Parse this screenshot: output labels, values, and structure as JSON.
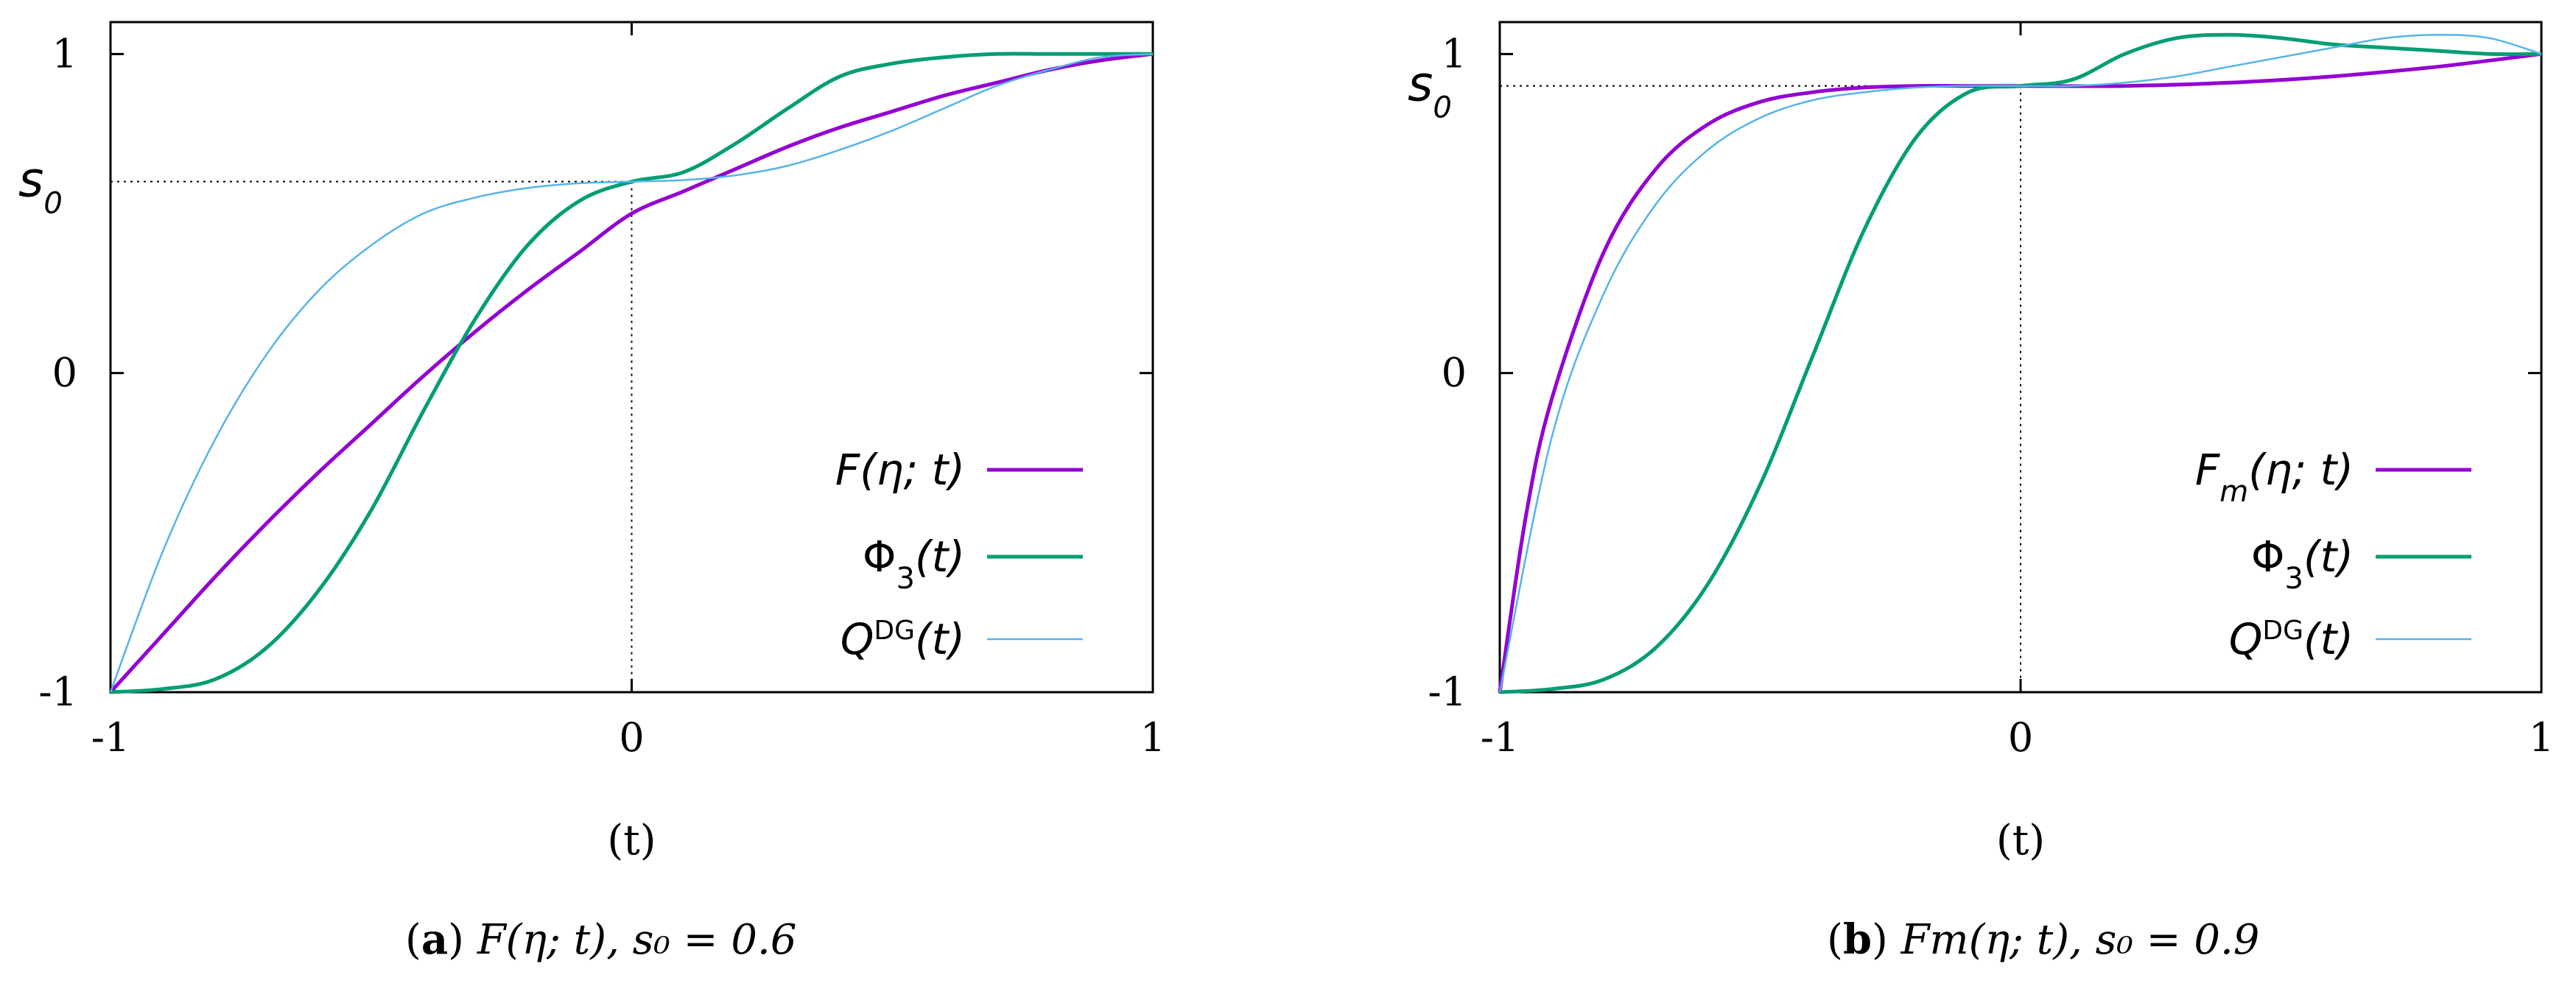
{
  "chart_data": [
    {
      "type": "line",
      "panel_tag": "a",
      "caption_expr": "F(η; t), s₀ = 0.6",
      "xlabel": "(t)",
      "xlim": [
        -1,
        1
      ],
      "ylim": [
        -1,
        1.1
      ],
      "x_ticks": [
        "-1",
        "0",
        "1"
      ],
      "y_ticks": [
        "-1",
        "0",
        "1"
      ],
      "s0": 0.6,
      "s0_label": "s0",
      "grid": false,
      "legend_position": "bottom-right",
      "colors": {
        "F": "#9400d3",
        "Phi3": "#009e73",
        "QDG": "#56b4e9"
      },
      "series": [
        {
          "key": "F",
          "name": "F(η; t)",
          "x": [
            -1,
            -0.9,
            -0.8,
            -0.7,
            -0.6,
            -0.5,
            -0.4,
            -0.3,
            -0.2,
            -0.1,
            0,
            0.1,
            0.2,
            0.3,
            0.4,
            0.5,
            0.6,
            0.7,
            0.8,
            0.9,
            1
          ],
          "y": [
            -1,
            -0.82,
            -0.64,
            -0.47,
            -0.31,
            -0.16,
            -0.01,
            0.13,
            0.26,
            0.38,
            0.5,
            0.57,
            0.64,
            0.71,
            0.77,
            0.82,
            0.87,
            0.91,
            0.95,
            0.98,
            1.0
          ]
        },
        {
          "key": "Phi3",
          "name": "Φ3(t)",
          "x": [
            -1,
            -0.9,
            -0.8,
            -0.7,
            -0.6,
            -0.5,
            -0.4,
            -0.3,
            -0.2,
            -0.1,
            0,
            0.1,
            0.2,
            0.3,
            0.4,
            0.5,
            0.6,
            0.7,
            0.8,
            0.9,
            1
          ],
          "y": [
            -1,
            -0.99,
            -0.96,
            -0.86,
            -0.68,
            -0.43,
            -0.12,
            0.17,
            0.4,
            0.54,
            0.6,
            0.63,
            0.72,
            0.83,
            0.93,
            0.97,
            0.99,
            1.0,
            1.0,
            1.0,
            1.0
          ]
        },
        {
          "key": "QDG",
          "name": "QDG(t)",
          "x": [
            -1,
            -0.9,
            -0.8,
            -0.7,
            -0.6,
            -0.5,
            -0.4,
            -0.3,
            -0.2,
            -0.1,
            0,
            0.1,
            0.2,
            0.3,
            0.4,
            0.5,
            0.6,
            0.7,
            0.8,
            0.9,
            1
          ],
          "y": [
            -1,
            -0.56,
            -0.21,
            0.06,
            0.26,
            0.4,
            0.5,
            0.55,
            0.58,
            0.595,
            0.6,
            0.605,
            0.62,
            0.65,
            0.7,
            0.76,
            0.83,
            0.9,
            0.95,
            0.99,
            1.0
          ]
        }
      ]
    },
    {
      "type": "line",
      "panel_tag": "b",
      "caption_expr": "Fm(η; t), s₀ = 0.9",
      "xlabel": "(t)",
      "xlim": [
        -1,
        1
      ],
      "ylim": [
        -1,
        1.1
      ],
      "x_ticks": [
        "-1",
        "0",
        "1"
      ],
      "y_ticks": [
        "-1",
        "0",
        "1"
      ],
      "s0": 0.9,
      "s0_label": "s0",
      "grid": false,
      "legend_position": "bottom-right",
      "colors": {
        "F": "#9400d3",
        "Phi3": "#009e73",
        "QDG": "#56b4e9"
      },
      "series": [
        {
          "key": "F",
          "name": "Fm(η; t)",
          "x": [
            -1,
            -0.95,
            -0.9,
            -0.8,
            -0.7,
            -0.6,
            -0.5,
            -0.4,
            -0.3,
            -0.2,
            -0.1,
            0,
            0.2,
            0.4,
            0.6,
            0.8,
            1
          ],
          "y": [
            -1,
            -0.45,
            -0.08,
            0.38,
            0.64,
            0.78,
            0.85,
            0.88,
            0.895,
            0.9,
            0.9,
            0.9,
            0.9,
            0.91,
            0.93,
            0.96,
            1.0
          ]
        },
        {
          "key": "Phi3",
          "name": "Φ3(t)",
          "x": [
            -1,
            -0.9,
            -0.8,
            -0.7,
            -0.6,
            -0.5,
            -0.4,
            -0.3,
            -0.2,
            -0.1,
            0,
            0.1,
            0.2,
            0.3,
            0.4,
            0.5,
            0.6,
            0.7,
            0.8,
            0.9,
            1
          ],
          "y": [
            -1,
            -0.99,
            -0.96,
            -0.86,
            -0.66,
            -0.35,
            0.05,
            0.45,
            0.74,
            0.88,
            0.9,
            0.92,
            1.0,
            1.05,
            1.06,
            1.05,
            1.03,
            1.02,
            1.01,
            1.0,
            1.0
          ]
        },
        {
          "key": "QDG",
          "name": "QDG(t)",
          "x": [
            -1,
            -0.9,
            -0.8,
            -0.7,
            -0.6,
            -0.5,
            -0.4,
            -0.3,
            -0.2,
            -0.1,
            0,
            0.1,
            0.2,
            0.3,
            0.4,
            0.5,
            0.6,
            0.7,
            0.8,
            0.9,
            1
          ],
          "y": [
            -1,
            -0.2,
            0.25,
            0.53,
            0.7,
            0.8,
            0.855,
            0.88,
            0.895,
            0.9,
            0.9,
            0.9,
            0.91,
            0.93,
            0.96,
            0.99,
            1.02,
            1.05,
            1.06,
            1.05,
            1.0
          ]
        }
      ]
    }
  ]
}
